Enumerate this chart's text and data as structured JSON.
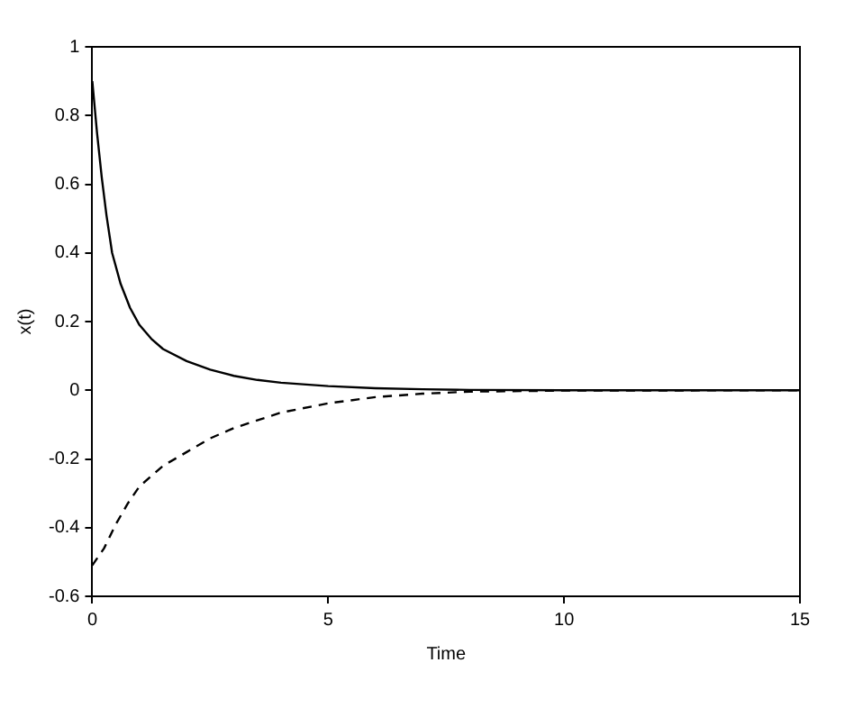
{
  "chart_data": {
    "type": "line",
    "xlabel": "Time",
    "ylabel": "x(t)",
    "xlim": [
      0,
      15
    ],
    "ylim": [
      -0.6,
      1
    ],
    "xticks": [
      0,
      5,
      10,
      15
    ],
    "yticks": [
      -0.6,
      -0.4,
      -0.2,
      0,
      0.2,
      0.4,
      0.6,
      0.8,
      1
    ],
    "grid": false,
    "legend": false,
    "marker": "none",
    "series": [
      {
        "color": "#000000",
        "line_style": "solid",
        "x": [
          0,
          0.1,
          0.2,
          0.3,
          0.42,
          0.6,
          0.8,
          1,
          1.25,
          1.5,
          2,
          2.5,
          3,
          3.5,
          4,
          5,
          6,
          7,
          8,
          10,
          12,
          15
        ],
        "values": [
          0.9,
          0.75,
          0.62,
          0.51,
          0.4,
          0.31,
          0.24,
          0.19,
          0.15,
          0.12,
          0.085,
          0.06,
          0.042,
          0.03,
          0.022,
          0.012,
          0.006,
          0.003,
          0.001,
          0,
          0,
          0
        ]
      },
      {
        "color": "#000000",
        "line_style": "dashed",
        "x": [
          0,
          0.25,
          0.5,
          0.75,
          1,
          1.5,
          2,
          2.5,
          3,
          4,
          5,
          6,
          7,
          8,
          10,
          15
        ],
        "values": [
          -0.51,
          -0.46,
          -0.39,
          -0.33,
          -0.28,
          -0.22,
          -0.18,
          -0.14,
          -0.11,
          -0.065,
          -0.038,
          -0.02,
          -0.01,
          -0.004,
          -0.001,
          0
        ]
      }
    ]
  }
}
